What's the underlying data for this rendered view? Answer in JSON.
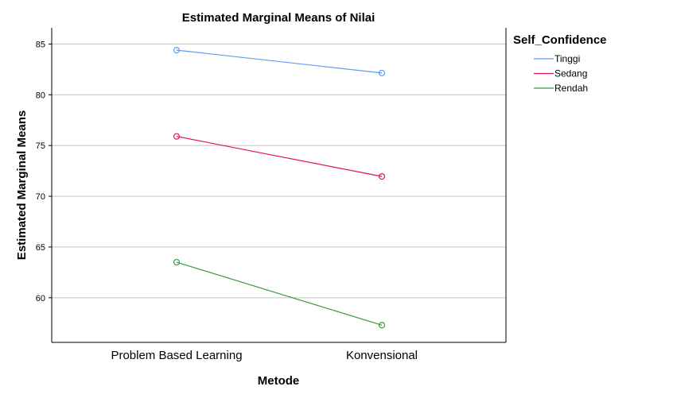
{
  "chart_data": {
    "type": "line",
    "title": "Estimated Marginal Means of Nilai",
    "xlabel": "Metode",
    "ylabel": "Estimated Marginal Means",
    "categories": [
      "Problem Based Learning",
      "Konvensional"
    ],
    "ylim": [
      55.6,
      86.6
    ],
    "yticks": [
      60,
      65,
      70,
      75,
      80,
      85
    ],
    "grid": true,
    "legend": {
      "title": "Self_Confidence",
      "placement": "right"
    },
    "series": [
      {
        "name": "Tinggi",
        "color": "#5b9bf0",
        "values": [
          84.4,
          82.15
        ]
      },
      {
        "name": "Sedang",
        "color": "#e0184a",
        "values": [
          75.9,
          71.95
        ]
      },
      {
        "name": "Rendah",
        "color": "#3a9a3a",
        "values": [
          63.5,
          57.3
        ]
      }
    ]
  }
}
